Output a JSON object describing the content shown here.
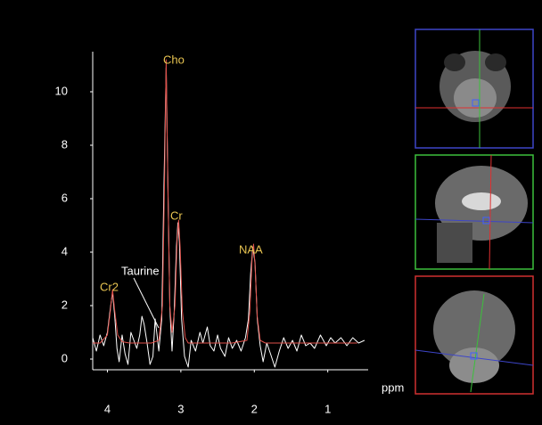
{
  "chart_data": {
    "type": "line",
    "x_label": "ppm",
    "xlim": [
      4.2,
      0.45
    ],
    "ylim": [
      -0.4,
      11.5
    ],
    "xticks": [
      4,
      3,
      2,
      1
    ],
    "yticks": [
      0,
      2,
      4,
      6,
      8,
      10
    ],
    "grid": false,
    "annotations": [
      "Cho",
      "Cr",
      "NAA",
      "Cr2",
      "Taurine"
    ],
    "series": [
      {
        "color": "#ffffff",
        "x": [
          4.2,
          4.15,
          4.1,
          4.05,
          4.0,
          3.96,
          3.93,
          3.9,
          3.87,
          3.84,
          3.8,
          3.76,
          3.72,
          3.68,
          3.64,
          3.6,
          3.56,
          3.53,
          3.5,
          3.46,
          3.42,
          3.38,
          3.35,
          3.32,
          3.3,
          3.26,
          3.23,
          3.2,
          3.18,
          3.15,
          3.12,
          3.09,
          3.06,
          3.04,
          3.02,
          2.99,
          2.95,
          2.9,
          2.86,
          2.8,
          2.74,
          2.7,
          2.64,
          2.6,
          2.55,
          2.5,
          2.46,
          2.4,
          2.35,
          2.3,
          2.24,
          2.18,
          2.12,
          2.08,
          2.05,
          2.02,
          1.99,
          1.96,
          1.92,
          1.88,
          1.83,
          1.78,
          1.72,
          1.66,
          1.6,
          1.54,
          1.48,
          1.42,
          1.36,
          1.3,
          1.24,
          1.18,
          1.1,
          1.02,
          0.96,
          0.9,
          0.82,
          0.74,
          0.66,
          0.58,
          0.5
        ],
        "values": [
          0.8,
          0.3,
          0.9,
          0.5,
          1.0,
          1.9,
          2.5,
          1.6,
          0.4,
          -0.1,
          0.9,
          0.2,
          -0.2,
          1.0,
          0.7,
          0.4,
          0.9,
          1.6,
          1.3,
          0.6,
          -0.2,
          0.1,
          1.5,
          0.8,
          0.3,
          1.5,
          6.5,
          10.9,
          7.2,
          1.9,
          0.3,
          1.8,
          4.2,
          5.1,
          4.4,
          1.5,
          0.1,
          -0.3,
          0.7,
          0.3,
          1.0,
          0.6,
          1.2,
          0.5,
          0.3,
          0.9,
          0.4,
          0.1,
          0.8,
          0.4,
          0.7,
          0.3,
          0.8,
          1.5,
          3.2,
          4.2,
          3.6,
          1.5,
          0.5,
          -0.1,
          0.6,
          0.2,
          -0.3,
          0.3,
          0.8,
          0.4,
          0.7,
          0.3,
          0.9,
          0.5,
          0.6,
          0.4,
          0.9,
          0.5,
          0.8,
          0.6,
          0.8,
          0.5,
          0.8,
          0.6,
          0.7
        ]
      },
      {
        "color": "#e0504a",
        "x": [
          4.2,
          4.1,
          4.0,
          3.96,
          3.93,
          3.9,
          3.86,
          3.8,
          3.7,
          3.5,
          3.4,
          3.3,
          3.25,
          3.22,
          3.2,
          3.18,
          3.15,
          3.12,
          3.08,
          3.05,
          3.03,
          3.01,
          2.98,
          2.94,
          2.9,
          2.6,
          2.3,
          2.1,
          2.06,
          2.03,
          2.01,
          1.99,
          1.96,
          1.92,
          1.85,
          1.5,
          1.0,
          0.6
        ],
        "values": [
          0.6,
          0.6,
          0.9,
          1.8,
          2.6,
          1.8,
          0.9,
          0.65,
          0.6,
          0.6,
          0.6,
          0.7,
          2.0,
          7.0,
          11.2,
          7.0,
          2.0,
          1.0,
          2.0,
          4.5,
          5.2,
          4.2,
          1.8,
          0.8,
          0.6,
          0.6,
          0.6,
          0.7,
          1.8,
          3.8,
          4.3,
          3.5,
          1.6,
          0.7,
          0.6,
          0.6,
          0.6,
          0.6
        ]
      }
    ]
  }
}
